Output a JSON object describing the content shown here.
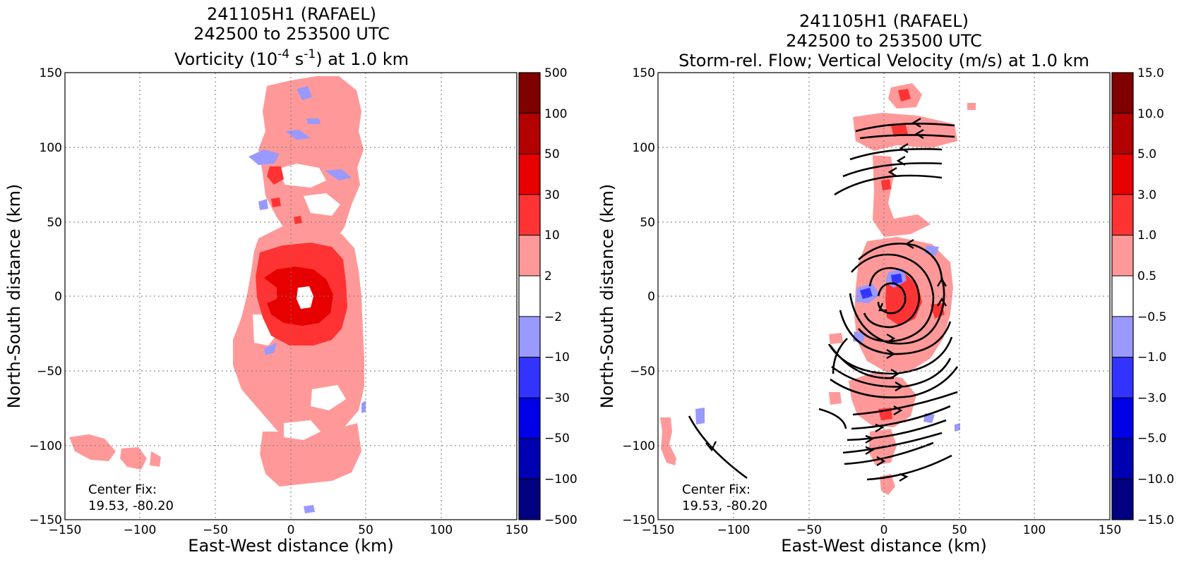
{
  "chart_data": [
    {
      "type": "heatmap",
      "title_lines": [
        "241105H1 (RAFAEL)",
        "242500 to 253500 UTC"
      ],
      "title_var": {
        "pre": "Vorticity (10",
        "exp1": "-4",
        "mid": " s",
        "exp2": "-1",
        "post": ") at 1.0 km"
      },
      "xlabel": "East-West distance (km)",
      "ylabel": "North-South distance (km)",
      "xlim": [
        -150,
        150
      ],
      "ylim": [
        -150,
        150
      ],
      "xticks": [
        -150,
        -100,
        -50,
        0,
        50,
        100,
        150
      ],
      "yticks": [
        -150,
        -100,
        -50,
        0,
        50,
        100,
        150
      ],
      "xtick_labels": [
        "−150",
        "−100",
        "−50",
        "0",
        "50",
        "100",
        "150"
      ],
      "ytick_labels": [
        "−150",
        "−100",
        "−50",
        "0",
        "50",
        "100",
        "150"
      ],
      "grid": true,
      "colorbar": {
        "labels": [
          "500",
          "100",
          "50",
          "30",
          "10",
          "2",
          "−2",
          "−10",
          "−30",
          "−50",
          "−100",
          "−500"
        ],
        "colors": [
          "#800000",
          "#b30000",
          "#e60000",
          "#ff3333",
          "#ff9999",
          "#ffffff",
          "#9999ff",
          "#3333ff",
          "#0000e6",
          "#0000b3",
          "#000080"
        ]
      },
      "annotation": [
        "Center Fix:",
        "19.53, -80.20"
      ]
    },
    {
      "type": "heatmap",
      "title_lines": [
        "241105H1 (RAFAEL)",
        "242500 to 253500 UTC",
        "Storm-rel. Flow; Vertical Velocity (m/s) at 1.0 km"
      ],
      "xlabel": "East-West distance (km)",
      "ylabel": "North-South distance (km)",
      "xlim": [
        -150,
        150
      ],
      "ylim": [
        -150,
        150
      ],
      "xticks": [
        -150,
        -100,
        -50,
        0,
        50,
        100,
        150
      ],
      "yticks": [
        -150,
        -100,
        -50,
        0,
        50,
        100,
        150
      ],
      "xtick_labels": [
        "−150",
        "−100",
        "−50",
        "0",
        "50",
        "100",
        "150"
      ],
      "ytick_labels": [
        "−150",
        "−100",
        "−50",
        "0",
        "50",
        "100",
        "150"
      ],
      "grid": true,
      "colorbar": {
        "labels": [
          "15.0",
          "10.0",
          "5.0",
          "3.0",
          "1.0",
          "0.5",
          "−0.5",
          "−1.0",
          "−3.0",
          "−5.0",
          "−10.0",
          "−15.0"
        ],
        "colors": [
          "#800000",
          "#b30000",
          "#e60000",
          "#ff3333",
          "#ff9999",
          "#ffffff",
          "#9999ff",
          "#3333ff",
          "#0000e6",
          "#0000b3",
          "#000080"
        ]
      },
      "annotation": [
        "Center Fix:",
        "19.53, -80.20"
      ]
    }
  ]
}
